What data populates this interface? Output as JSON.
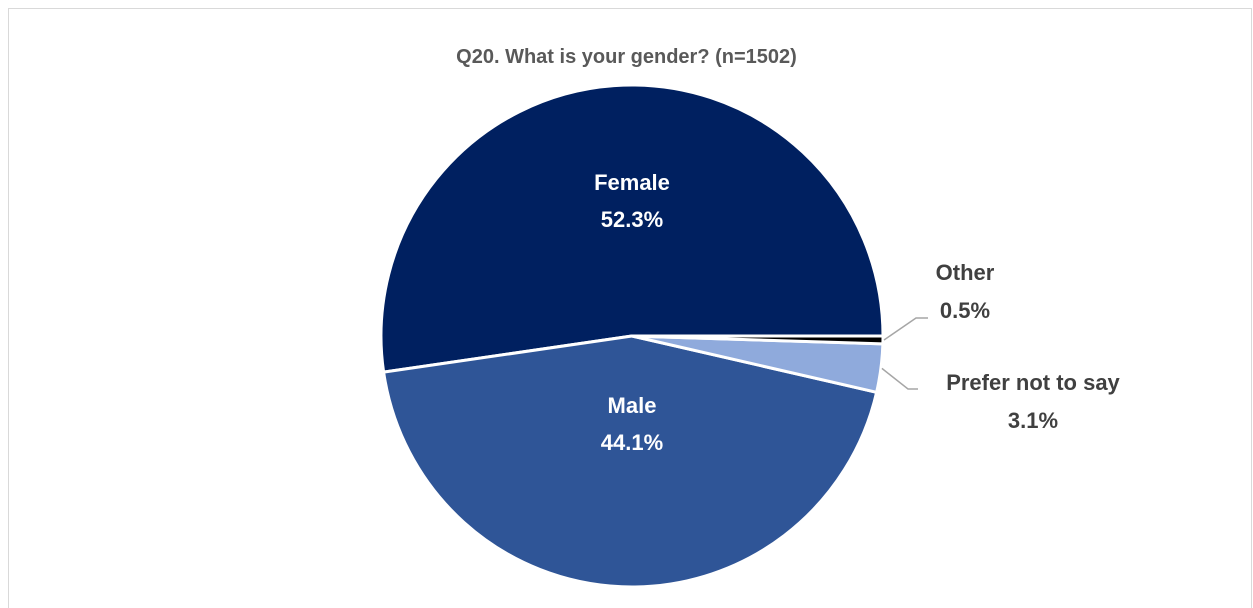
{
  "chart_data": {
    "type": "pie",
    "title": "Q20. What is your gender? (n=1502)",
    "slices": [
      {
        "label": "Female",
        "value": 52.3,
        "display": "52.3%",
        "color": "#002060",
        "label_color": "#ffffff",
        "label_inside": true
      },
      {
        "label": "Male",
        "value": 44.1,
        "display": "44.1%",
        "color": "#2F5597",
        "label_color": "#ffffff",
        "label_inside": true
      },
      {
        "label": "Prefer not to say",
        "value": 3.1,
        "display": "3.1%",
        "color": "#8FAADC",
        "label_color": "#404040",
        "label_inside": false
      },
      {
        "label": "Other",
        "value": 0.5,
        "display": "0.5%",
        "color": "#000000",
        "label_color": "#404040",
        "label_inside": false
      }
    ],
    "start_direction": "east",
    "direction": "counterclockwise",
    "leader_color": "#a6a6a6"
  }
}
